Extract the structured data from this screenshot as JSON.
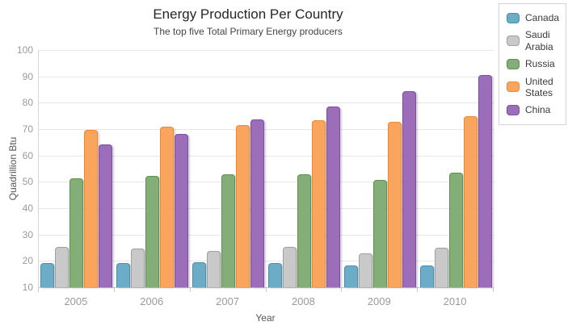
{
  "header": {
    "title": "Energy Production Per Country",
    "subtitle": "The top five Total Primary Energy producers"
  },
  "chart_data": {
    "type": "bar",
    "title": "Energy Production Per Country",
    "subtitle": "The top five Total Primary Energy producers",
    "categories": [
      "2005",
      "2006",
      "2007",
      "2008",
      "2009",
      "2010"
    ],
    "series": [
      {
        "name": "Canada",
        "fill": "#6CACC6",
        "stroke": "#4A8EAD",
        "values": [
          19.1,
          19.3,
          19.5,
          19.1,
          18.3,
          18.4
        ]
      },
      {
        "name": "Saudi Arabia",
        "fill": "#C9C9C9",
        "stroke": "#A0A0A0",
        "values": [
          25.3,
          24.8,
          23.9,
          25.3,
          22.9,
          24.9
        ]
      },
      {
        "name": "Russia",
        "fill": "#83AE77",
        "stroke": "#5E9253",
        "values": [
          51.2,
          52.3,
          52.8,
          52.8,
          50.7,
          53.4
        ]
      },
      {
        "name": "United States",
        "fill": "#F9A55E",
        "stroke": "#EB8A2F",
        "values": [
          69.6,
          71.0,
          71.5,
          73.4,
          72.7,
          75.0
        ]
      },
      {
        "name": "China",
        "fill": "#9C6EB9",
        "stroke": "#7C4EA5",
        "values": [
          64.1,
          68.3,
          73.6,
          78.5,
          84.5,
          90.6
        ]
      }
    ],
    "xlabel": "Year",
    "ylabel": "Quadrillion Btu",
    "ylim": [
      10,
      100
    ],
    "yticks": [
      100,
      90,
      80,
      70,
      60,
      50,
      40,
      30,
      20,
      10
    ],
    "grid": true,
    "legend_position": "top-right",
    "colors": {
      "title_text": "#262626",
      "subtitle_text": "#434343",
      "tick_text": "#9A9A9A",
      "axis_title_text": "#565656",
      "gridline": "#E7E7E7",
      "axis_line": "#C9C9C9",
      "legend_border": "#D4D4D4",
      "background": "#FFFFFF"
    }
  }
}
